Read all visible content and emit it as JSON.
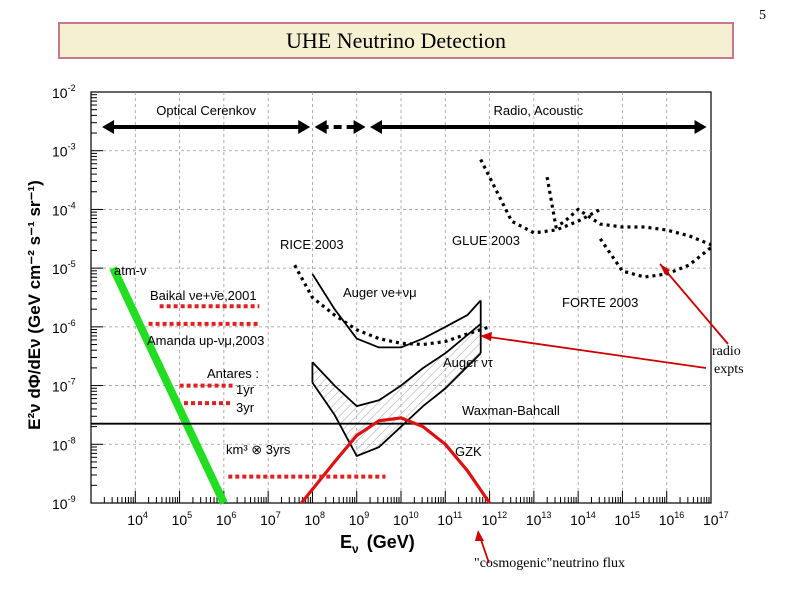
{
  "slide": {
    "page_number": "5",
    "title": "UHE Neutrino Detection"
  },
  "annotations": {
    "radio_line1": "radio",
    "radio_line2": "expts",
    "cosmogenic": "\"cosmogenic\"neutrino flux"
  },
  "colors": {
    "title_border": "#c9788c",
    "title_fill": "#f6f0d2",
    "atm_nu": "#22dd22",
    "dotted_limits": "#dd2222",
    "gzk": "#dd1111",
    "arrows": "#cc0000",
    "curves": "#000000"
  },
  "chart_data": {
    "type": "line",
    "x_scale": "log",
    "y_scale": "log",
    "xlim_log10": [
      3,
      17
    ],
    "ylim_log10": [
      -9,
      -2
    ],
    "x_tick_exponents": [
      4,
      5,
      6,
      7,
      8,
      9,
      10,
      11,
      12,
      13,
      14,
      15,
      16,
      17
    ],
    "y_tick_exponents": [
      -2,
      -3,
      -4,
      -5,
      -6,
      -7,
      -8,
      -9
    ],
    "tick_base": "10",
    "xlabel_main": "E",
    "xlabel_sub": "ν",
    "xlabel_units": "(GeV)",
    "ylabel_text": "E²ν dΦ/dEν (GeV cm⁻² s⁻¹ sr⁻¹)",
    "grid": true,
    "regions": [
      {
        "label": "Optical Cerenkov",
        "x_range_log10": [
          3.25,
          7.95
        ]
      },
      {
        "label": "",
        "x_range_log10": [
          8.05,
          9.2
        ],
        "style": "dotted"
      },
      {
        "label": "Radio, Acoustic",
        "x_range_log10": [
          9.3,
          16.9
        ]
      }
    ],
    "labels": {
      "rice": "RICE 2003",
      "glue": "GLUE 2003",
      "forte": "FORTE 2003",
      "atm": "atm-ν",
      "baikal": "Baikal νe+ν̄e,2001",
      "auger_e_mu": "Auger νe+νμ",
      "amanda": "Amanda up-νμ,2003",
      "auger_tau": "Auger ντ",
      "antares": "Antares :",
      "antares_1yr": "1yr",
      "antares_3yr": "3yr",
      "waxman": "Waxman-Bahcall",
      "km3": "km³ ⊗ 3yrs",
      "gzk": "GZK"
    },
    "series": [
      {
        "name": "atm-ν",
        "style": "thick-green",
        "x": [
          3.5,
          6.0
        ],
        "y": [
          -5.0,
          -9.0
        ]
      },
      {
        "name": "RICE 2003",
        "style": "dotted-black",
        "x": [
          7.6,
          8.0,
          8.5,
          9.0,
          9.5,
          10.0,
          10.5,
          11.0,
          11.5,
          12.0
        ],
        "y": [
          -4.95,
          -5.5,
          -5.8,
          -6.05,
          -6.2,
          -6.28,
          -6.3,
          -6.25,
          -6.12,
          -6.0
        ]
      },
      {
        "name": "GLUE 2003",
        "style": "dotted-black",
        "x": [
          11.8,
          12.5,
          13.0,
          13.5,
          14.0,
          14.5
        ],
        "y": [
          -3.15,
          -4.2,
          -4.4,
          -4.35,
          -4.2,
          -4.0
        ]
      },
      {
        "name": "GLUE 2003 (branch)",
        "style": "dotted-black",
        "x": [
          13.3,
          13.5,
          13.7,
          14.0,
          14.5,
          15.0,
          15.5,
          16.0,
          16.5,
          17.0
        ],
        "y": [
          -3.45,
          -4.3,
          -4.2,
          -4.0,
          -4.25,
          -4.3,
          -4.3,
          -4.35,
          -4.45,
          -4.6
        ]
      },
      {
        "name": "FORTE 2003",
        "style": "dotted-black",
        "x": [
          14.5,
          15.0,
          15.5,
          16.0,
          16.5,
          17.0
        ],
        "y": [
          -4.5,
          -5.05,
          -5.15,
          -5.1,
          -4.95,
          -4.65
        ]
      },
      {
        "name": "Auger νe+νμ",
        "style": "solid-black",
        "x": [
          8.0,
          8.5,
          9.0,
          9.5,
          10.0,
          10.5,
          11.0,
          11.5,
          11.8
        ],
        "y": [
          -5.1,
          -5.7,
          -6.2,
          -6.35,
          -6.35,
          -6.2,
          -6.0,
          -5.8,
          -5.55
        ]
      },
      {
        "name": "Auger ντ (upper)",
        "style": "solid-black",
        "x": [
          8.0,
          8.5,
          9.0,
          9.5,
          10.0,
          10.5,
          11.0,
          11.8
        ],
        "y": [
          -6.6,
          -7.0,
          -7.35,
          -7.25,
          -7.0,
          -6.7,
          -6.45,
          -5.95
        ]
      },
      {
        "name": "Auger ντ (lower)",
        "style": "solid-black",
        "x": [
          8.0,
          8.5,
          9.0,
          9.5,
          10.0,
          10.5,
          11.0,
          11.8
        ],
        "y": [
          -6.95,
          -7.5,
          -8.2,
          -8.05,
          -7.7,
          -7.35,
          -7.05,
          -6.45
        ]
      },
      {
        "name": "Waxman-Bahcall",
        "style": "solid-black",
        "x": [
          3.0,
          17.0
        ],
        "y": [
          -7.65,
          -7.65
        ]
      },
      {
        "name": "GZK",
        "style": "solid-red",
        "x": [
          7.75,
          8.5,
          9.0,
          9.5,
          10.0,
          10.5,
          11.0,
          11.5,
          12.0
        ],
        "y": [
          -9.0,
          -8.3,
          -7.85,
          -7.6,
          -7.55,
          -7.7,
          -8.0,
          -8.45,
          -9.0
        ]
      }
    ],
    "limit_bars": [
      {
        "name": "Baikal νe+ν̄e,2001",
        "x": [
          4.55,
          6.8
        ],
        "y": -5.65
      },
      {
        "name": "Amanda up-νμ,2003",
        "x": [
          4.3,
          6.8
        ],
        "y": -5.95
      },
      {
        "name": "Antares 1yr",
        "x": [
          5.0,
          6.2
        ],
        "y": -7.0
      },
      {
        "name": "Antares 3yr",
        "x": [
          5.1,
          6.2
        ],
        "y": -7.3
      },
      {
        "name": "km³ ⊗ 3yrs",
        "x": [
          6.1,
          9.65
        ],
        "y": -8.55
      }
    ]
  }
}
